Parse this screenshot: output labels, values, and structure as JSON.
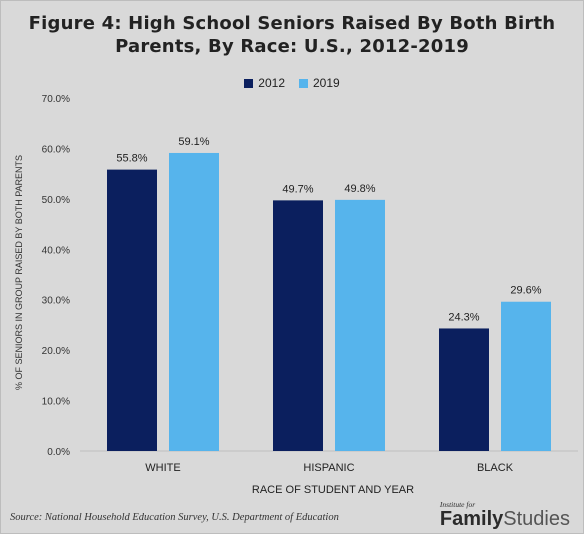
{
  "title_line1": "Figure 4: High School Seniors Raised By Both Birth",
  "title_line2": "Parents, By Race: U.S., 2012-2019",
  "source": "Source: National Household Education Survey, U.S. Department of Education",
  "brand": {
    "small": "Institute for",
    "word1": "Family",
    "word2": "Studies"
  },
  "colors": {
    "2012": "#0b1f5e",
    "2019": "#56b4ec",
    "background": "#d9d9d9"
  },
  "chart_data": {
    "type": "bar",
    "categories": [
      "WHITE",
      "HISPANIC",
      "BLACK"
    ],
    "series": [
      {
        "name": "2012",
        "values": [
          55.8,
          49.7,
          24.3
        ],
        "labels": [
          "55.8%",
          "49.7%",
          "24.3%"
        ]
      },
      {
        "name": "2019",
        "values": [
          59.1,
          49.8,
          29.6
        ],
        "labels": [
          "59.1%",
          "49.8%",
          "29.6%"
        ]
      }
    ],
    "ylim": [
      0,
      70
    ],
    "yticks": [
      "0.0%",
      "10.0%",
      "20.0%",
      "30.0%",
      "40.0%",
      "50.0%",
      "60.0%",
      "70.0%"
    ],
    "ylabel": "% OF SENIORS IN GROUP RAISED BY BOTH PARENTS",
    "xlabel": "RACE OF STUDENT AND YEAR",
    "legend_position": "top-center",
    "grid": false
  }
}
